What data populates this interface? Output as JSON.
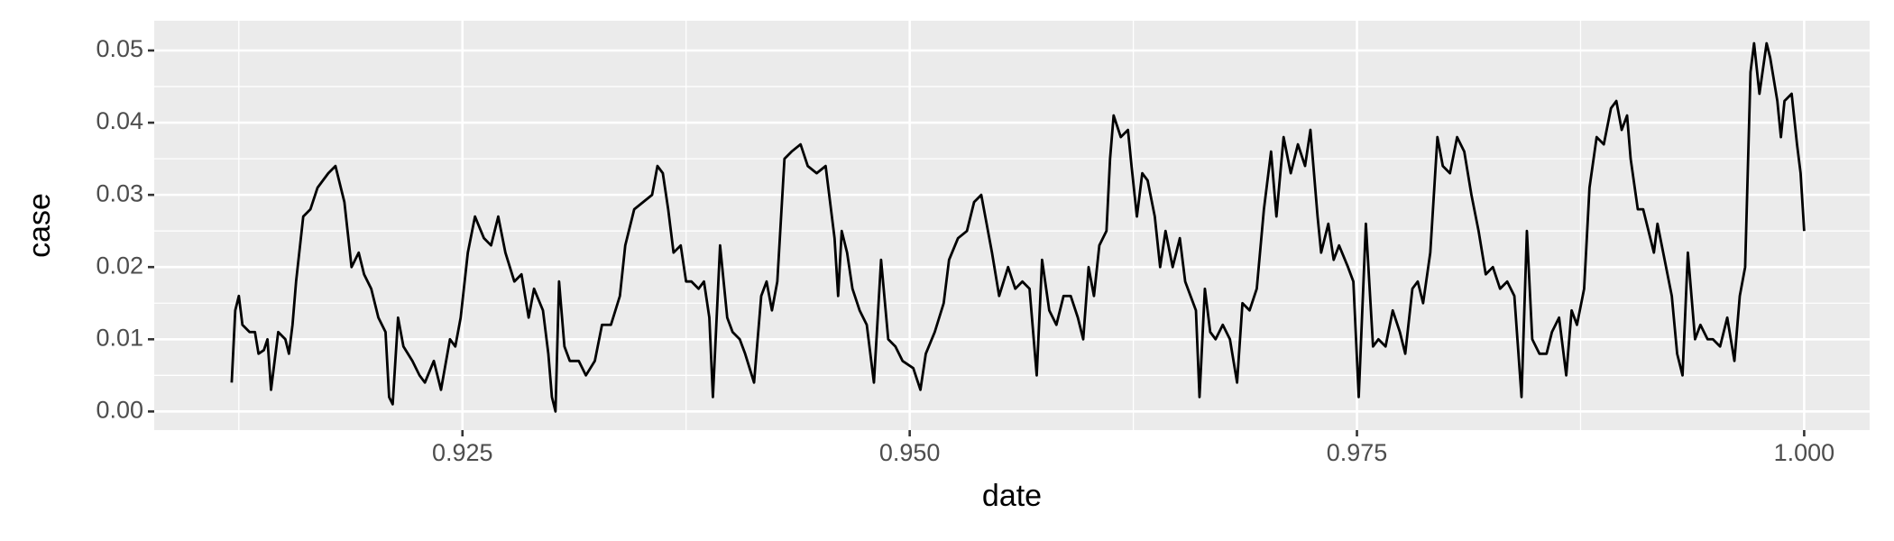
{
  "chart_data": {
    "type": "line",
    "x_label": "date",
    "y_label": "case",
    "x": [
      0.9121,
      0.9123,
      0.9125,
      0.9127,
      0.9131,
      0.9134,
      0.9136,
      0.9139,
      0.9141,
      0.9143,
      0.9147,
      0.9151,
      0.9153,
      0.9155,
      0.9157,
      0.9161,
      0.9165,
      0.9169,
      0.9175,
      0.9179,
      0.9184,
      0.9188,
      0.9192,
      0.9195,
      0.9199,
      0.9203,
      0.9207,
      0.9209,
      0.9211,
      0.9214,
      0.9217,
      0.9222,
      0.9226,
      0.9229,
      0.9234,
      0.9238,
      0.9243,
      0.9246,
      0.9249,
      0.9253,
      0.9257,
      0.9262,
      0.9266,
      0.927,
      0.9274,
      0.9279,
      0.9283,
      0.9287,
      0.929,
      0.9295,
      0.9298,
      0.93,
      0.9302,
      0.9304,
      0.9307,
      0.931,
      0.9315,
      0.9319,
      0.9324,
      0.9328,
      0.9333,
      0.9338,
      0.9341,
      0.9346,
      0.9351,
      0.9356,
      0.9359,
      0.9362,
      0.9365,
      0.9368,
      0.9372,
      0.9375,
      0.9378,
      0.9382,
      0.9385,
      0.9388,
      0.939,
      0.9394,
      0.9398,
      0.9401,
      0.9405,
      0.9408,
      0.9413,
      0.9417,
      0.942,
      0.9423,
      0.9426,
      0.943,
      0.9434,
      0.9439,
      0.9443,
      0.9448,
      0.9453,
      0.9458,
      0.946,
      0.9462,
      0.9465,
      0.9468,
      0.9472,
      0.9476,
      0.948,
      0.9484,
      0.9488,
      0.9492,
      0.9496,
      0.9502,
      0.9506,
      0.9509,
      0.9514,
      0.9519,
      0.9522,
      0.9527,
      0.9532,
      0.9536,
      0.954,
      0.9543,
      0.9546,
      0.955,
      0.9555,
      0.9559,
      0.9563,
      0.9567,
      0.9571,
      0.9574,
      0.9578,
      0.9582,
      0.9586,
      0.959,
      0.9594,
      0.9597,
      0.96,
      0.9603,
      0.9606,
      0.961,
      0.9612,
      0.9614,
      0.9618,
      0.9622,
      0.9624,
      0.9627,
      0.963,
      0.9633,
      0.9637,
      0.964,
      0.9643,
      0.9647,
      0.9651,
      0.9654,
      0.9657,
      0.966,
      0.9662,
      0.9665,
      0.9668,
      0.9671,
      0.9675,
      0.9679,
      0.9683,
      0.9686,
      0.969,
      0.9694,
      0.9698,
      0.9702,
      0.9705,
      0.9709,
      0.9713,
      0.9717,
      0.9721,
      0.9724,
      0.9728,
      0.973,
      0.9734,
      0.9737,
      0.974,
      0.9745,
      0.9748,
      0.9751,
      0.9755,
      0.9759,
      0.9762,
      0.9766,
      0.977,
      0.9774,
      0.9777,
      0.9781,
      0.9784,
      0.9787,
      0.9791,
      0.9795,
      0.9798,
      0.9802,
      0.9806,
      0.981,
      0.9814,
      0.9818,
      0.9822,
      0.9826,
      0.983,
      0.9834,
      0.9838,
      0.9842,
      0.9845,
      0.9848,
      0.9852,
      0.9856,
      0.9859,
      0.9863,
      0.9867,
      0.987,
      0.9873,
      0.9877,
      0.988,
      0.9884,
      0.9888,
      0.9892,
      0.9895,
      0.9898,
      0.9901,
      0.9903,
      0.9907,
      0.991,
      0.9913,
      0.9916,
      0.9918,
      0.9922,
      0.9926,
      0.9929,
      0.9932,
      0.9935,
      0.9939,
      0.9942,
      0.9946,
      0.9949,
      0.9953,
      0.9957,
      0.9961,
      0.9964,
      0.9967,
      0.997,
      0.9972,
      0.9975,
      0.9979,
      0.9981,
      0.9985,
      0.9987,
      0.9989,
      0.9993,
      0.9996,
      0.9998,
      1.0
    ],
    "values": [
      0.004,
      0.014,
      0.016,
      0.012,
      0.011,
      0.011,
      0.008,
      0.0085,
      0.01,
      0.003,
      0.011,
      0.01,
      0.008,
      0.012,
      0.018,
      0.027,
      0.028,
      0.031,
      0.033,
      0.034,
      0.029,
      0.02,
      0.022,
      0.019,
      0.017,
      0.013,
      0.011,
      0.002,
      0.001,
      0.013,
      0.009,
      0.007,
      0.005,
      0.004,
      0.007,
      0.003,
      0.01,
      0.009,
      0.013,
      0.022,
      0.027,
      0.024,
      0.023,
      0.027,
      0.022,
      0.018,
      0.019,
      0.013,
      0.017,
      0.014,
      0.008,
      0.002,
      0.0,
      0.018,
      0.009,
      0.007,
      0.007,
      0.005,
      0.007,
      0.012,
      0.012,
      0.016,
      0.023,
      0.028,
      0.029,
      0.03,
      0.034,
      0.033,
      0.028,
      0.022,
      0.023,
      0.018,
      0.018,
      0.017,
      0.018,
      0.013,
      0.002,
      0.023,
      0.013,
      0.011,
      0.01,
      0.008,
      0.004,
      0.016,
      0.018,
      0.014,
      0.018,
      0.035,
      0.036,
      0.037,
      0.034,
      0.033,
      0.034,
      0.024,
      0.016,
      0.025,
      0.022,
      0.017,
      0.014,
      0.012,
      0.004,
      0.021,
      0.01,
      0.009,
      0.007,
      0.006,
      0.003,
      0.008,
      0.011,
      0.015,
      0.021,
      0.024,
      0.025,
      0.029,
      0.03,
      0.026,
      0.022,
      0.016,
      0.02,
      0.017,
      0.018,
      0.017,
      0.005,
      0.021,
      0.014,
      0.012,
      0.016,
      0.016,
      0.013,
      0.01,
      0.02,
      0.016,
      0.023,
      0.025,
      0.035,
      0.041,
      0.038,
      0.039,
      0.034,
      0.027,
      0.033,
      0.032,
      0.027,
      0.02,
      0.025,
      0.02,
      0.024,
      0.018,
      0.016,
      0.014,
      0.002,
      0.017,
      0.011,
      0.01,
      0.012,
      0.01,
      0.004,
      0.015,
      0.014,
      0.017,
      0.028,
      0.036,
      0.027,
      0.038,
      0.033,
      0.037,
      0.034,
      0.039,
      0.027,
      0.022,
      0.026,
      0.021,
      0.023,
      0.02,
      0.018,
      0.002,
      0.026,
      0.009,
      0.01,
      0.009,
      0.014,
      0.011,
      0.008,
      0.017,
      0.018,
      0.015,
      0.022,
      0.038,
      0.034,
      0.033,
      0.038,
      0.036,
      0.03,
      0.025,
      0.019,
      0.02,
      0.017,
      0.018,
      0.016,
      0.002,
      0.025,
      0.01,
      0.008,
      0.008,
      0.011,
      0.013,
      0.005,
      0.014,
      0.012,
      0.017,
      0.031,
      0.038,
      0.037,
      0.042,
      0.043,
      0.039,
      0.041,
      0.035,
      0.028,
      0.028,
      0.025,
      0.022,
      0.026,
      0.021,
      0.016,
      0.008,
      0.005,
      0.022,
      0.01,
      0.012,
      0.01,
      0.01,
      0.009,
      0.013,
      0.007,
      0.016,
      0.02,
      0.047,
      0.051,
      0.044,
      0.051,
      0.049,
      0.043,
      0.038,
      0.043,
      0.044,
      0.037,
      0.033,
      0.025
    ],
    "color": "#000000",
    "xlim": [
      0.90777,
      1.00366
    ],
    "xticks": [
      0.925,
      {
        "value": 0.95,
        "label": "0.950"
      },
      0.975,
      {
        "value": 1,
        "label": "1.000"
      }
    ],
    "ylim": [
      -0.00258,
      0.05412
    ],
    "yticks": [
      {
        "value": 0,
        "label": "0.00"
      },
      0.01,
      0.02,
      0.03,
      0.04,
      0.05
    ],
    "grid": true
  }
}
